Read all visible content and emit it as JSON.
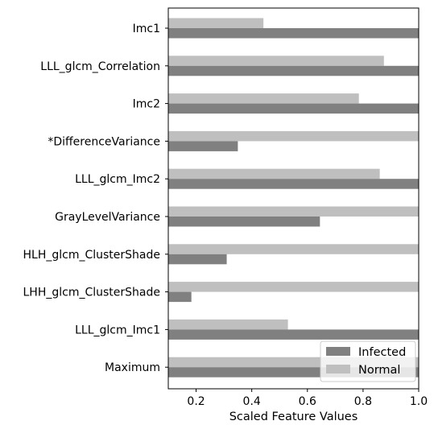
{
  "chart_data": {
    "type": "bar",
    "orientation": "horizontal",
    "title": "",
    "xlabel": "Scaled Feature Values",
    "ylabel": "",
    "xlim": [
      0.1,
      1.0
    ],
    "xticks": [
      0.2,
      0.4,
      0.6,
      0.8,
      1.0
    ],
    "xtick_labels": [
      "0.2",
      "0.4",
      "0.6",
      "0.8",
      "1.0"
    ],
    "grid": false,
    "legend_position": "bottom-right",
    "categories": [
      "Imc1",
      "LLL_glcm_Correlation",
      "Imc2",
      "*DifferenceVariance",
      "LLL_glcm_Imc2",
      "GrayLevelVariance",
      "HLH_glcm_ClusterShade",
      "LHH_glcm_ClusterShade",
      "LLL_glcm_Imc1",
      "Maximum"
    ],
    "series": [
      {
        "name": "Infected",
        "color": "#808080",
        "values": [
          1.0,
          1.0,
          1.0,
          0.35,
          1.0,
          0.645,
          0.31,
          0.183,
          1.0,
          1.0
        ]
      },
      {
        "name": "Normal",
        "color": "#bfbfbf",
        "values": [
          0.442,
          0.875,
          0.785,
          1.0,
          0.86,
          1.0,
          1.0,
          1.0,
          0.53,
          1.0
        ]
      }
    ]
  }
}
